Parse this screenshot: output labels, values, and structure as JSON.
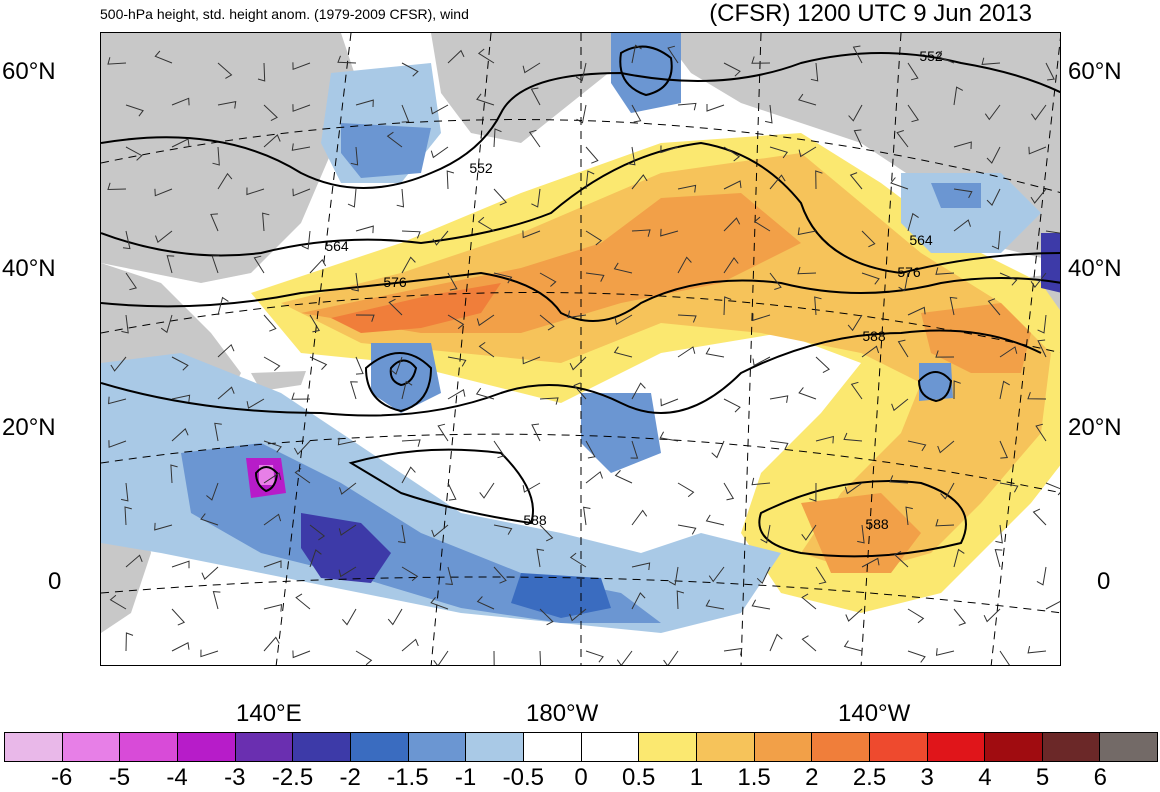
{
  "header": {
    "left": "500-hPa height, std. height anom. (1979-2009 CFSR), wind",
    "right": "(CFSR) 1200 UTC 9 Jun 2013"
  },
  "axes": {
    "lat_labels": [
      "60°N",
      "40°N",
      "20°N",
      "0"
    ],
    "lon_labels": [
      "140°E",
      "180°W",
      "140°W"
    ]
  },
  "contours": {
    "labels": [
      "552",
      "552",
      "564",
      "564",
      "576",
      "576",
      "588",
      "588",
      "588"
    ]
  },
  "colorbar": {
    "labels": [
      "-6",
      "-5",
      "-4",
      "-3",
      "-2.5",
      "-2",
      "-1.5",
      "-1",
      "-0.5",
      "0",
      "0.5",
      "1",
      "1.5",
      "2",
      "2.5",
      "3",
      "4",
      "5",
      "6"
    ],
    "colors": [
      "#e9b8e9",
      "#e77fe7",
      "#d84bd8",
      "#b71cc9",
      "#6a2fb0",
      "#3d3aa8",
      "#3a6cc0",
      "#6b96d2",
      "#a9c9e6",
      "#ffffff",
      "#ffffff",
      "#fbe870",
      "#f6c35a",
      "#f2a048",
      "#f07e3a",
      "#ee4a2e",
      "#e0151a",
      "#a00c10",
      "#6b2828",
      "#736a67"
    ]
  }
}
